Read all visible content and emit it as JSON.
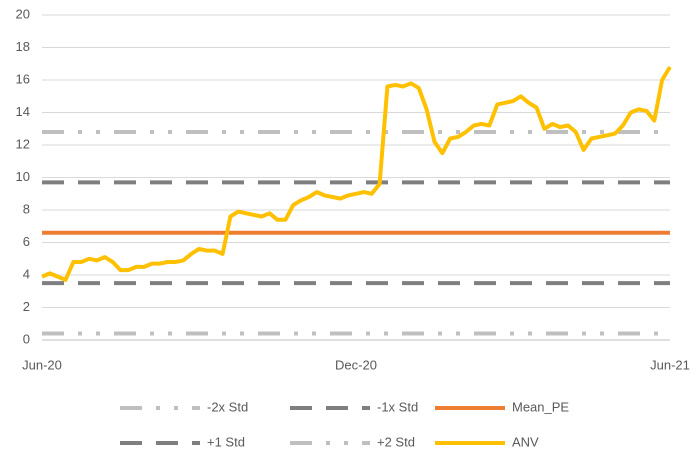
{
  "chart_data": {
    "type": "line",
    "categories": [
      "Jun-20",
      null,
      null,
      null,
      null,
      null,
      null,
      null,
      null,
      null,
      null,
      null,
      null,
      null,
      null,
      null,
      null,
      null,
      null,
      null,
      null,
      null,
      null,
      null,
      null,
      null,
      null,
      null,
      null,
      null,
      null,
      null,
      null,
      null,
      null,
      null,
      null,
      null,
      null,
      null,
      "Dec-20",
      null,
      null,
      null,
      null,
      null,
      null,
      null,
      null,
      null,
      null,
      null,
      null,
      null,
      null,
      null,
      null,
      null,
      null,
      null,
      null,
      null,
      null,
      null,
      null,
      null,
      null,
      null,
      null,
      null,
      null,
      null,
      null,
      null,
      null,
      null,
      null,
      null,
      null,
      null,
      "Jun-21"
    ],
    "ylim": [
      0,
      20
    ],
    "yticks": [
      0,
      2,
      4,
      6,
      8,
      10,
      12,
      14,
      16,
      18,
      20
    ],
    "grid": true,
    "series": [
      {
        "name": "-2x Std",
        "color": "#bfbfbf",
        "style": "long-dash-dot-dot",
        "values": [
          0.4,
          0.4,
          0.4,
          0.4,
          0.4,
          0.4,
          0.4,
          0.4,
          0.4,
          0.4,
          0.4,
          0.4,
          0.4,
          0.4,
          0.4,
          0.4,
          0.4,
          0.4,
          0.4,
          0.4,
          0.4,
          0.4,
          0.4,
          0.4,
          0.4,
          0.4,
          0.4,
          0.4,
          0.4,
          0.4,
          0.4,
          0.4,
          0.4,
          0.4,
          0.4,
          0.4,
          0.4,
          0.4,
          0.4,
          0.4,
          0.4,
          0.4,
          0.4,
          0.4,
          0.4,
          0.4,
          0.4,
          0.4,
          0.4,
          0.4,
          0.4,
          0.4,
          0.4,
          0.4,
          0.4,
          0.4,
          0.4,
          0.4,
          0.4,
          0.4,
          0.4,
          0.4,
          0.4,
          0.4,
          0.4,
          0.4,
          0.4,
          0.4,
          0.4,
          0.4,
          0.4,
          0.4,
          0.4,
          0.4,
          0.4,
          0.4,
          0.4,
          0.4,
          0.4,
          0.4,
          0.4
        ]
      },
      {
        "name": "-1x Std",
        "color": "#7f7f7f",
        "style": "long-dash",
        "values": [
          3.5,
          3.5,
          3.5,
          3.5,
          3.5,
          3.5,
          3.5,
          3.5,
          3.5,
          3.5,
          3.5,
          3.5,
          3.5,
          3.5,
          3.5,
          3.5,
          3.5,
          3.5,
          3.5,
          3.5,
          3.5,
          3.5,
          3.5,
          3.5,
          3.5,
          3.5,
          3.5,
          3.5,
          3.5,
          3.5,
          3.5,
          3.5,
          3.5,
          3.5,
          3.5,
          3.5,
          3.5,
          3.5,
          3.5,
          3.5,
          3.5,
          3.5,
          3.5,
          3.5,
          3.5,
          3.5,
          3.5,
          3.5,
          3.5,
          3.5,
          3.5,
          3.5,
          3.5,
          3.5,
          3.5,
          3.5,
          3.5,
          3.5,
          3.5,
          3.5,
          3.5,
          3.5,
          3.5,
          3.5,
          3.5,
          3.5,
          3.5,
          3.5,
          3.5,
          3.5,
          3.5,
          3.5,
          3.5,
          3.5,
          3.5,
          3.5,
          3.5,
          3.5,
          3.5,
          3.5,
          3.5
        ]
      },
      {
        "name": "Mean_PE",
        "color": "#ed7d31",
        "style": "solid",
        "values": [
          6.6,
          6.6,
          6.6,
          6.6,
          6.6,
          6.6,
          6.6,
          6.6,
          6.6,
          6.6,
          6.6,
          6.6,
          6.6,
          6.6,
          6.6,
          6.6,
          6.6,
          6.6,
          6.6,
          6.6,
          6.6,
          6.6,
          6.6,
          6.6,
          6.6,
          6.6,
          6.6,
          6.6,
          6.6,
          6.6,
          6.6,
          6.6,
          6.6,
          6.6,
          6.6,
          6.6,
          6.6,
          6.6,
          6.6,
          6.6,
          6.6,
          6.6,
          6.6,
          6.6,
          6.6,
          6.6,
          6.6,
          6.6,
          6.6,
          6.6,
          6.6,
          6.6,
          6.6,
          6.6,
          6.6,
          6.6,
          6.6,
          6.6,
          6.6,
          6.6,
          6.6,
          6.6,
          6.6,
          6.6,
          6.6,
          6.6,
          6.6,
          6.6,
          6.6,
          6.6,
          6.6,
          6.6,
          6.6,
          6.6,
          6.6,
          6.6,
          6.6,
          6.6,
          6.6,
          6.6,
          6.6
        ]
      },
      {
        "name": "+1 Std",
        "color": "#7f7f7f",
        "style": "long-dash",
        "values": [
          9.7,
          9.7,
          9.7,
          9.7,
          9.7,
          9.7,
          9.7,
          9.7,
          9.7,
          9.7,
          9.7,
          9.7,
          9.7,
          9.7,
          9.7,
          9.7,
          9.7,
          9.7,
          9.7,
          9.7,
          9.7,
          9.7,
          9.7,
          9.7,
          9.7,
          9.7,
          9.7,
          9.7,
          9.7,
          9.7,
          9.7,
          9.7,
          9.7,
          9.7,
          9.7,
          9.7,
          9.7,
          9.7,
          9.7,
          9.7,
          9.7,
          9.7,
          9.7,
          9.7,
          9.7,
          9.7,
          9.7,
          9.7,
          9.7,
          9.7,
          9.7,
          9.7,
          9.7,
          9.7,
          9.7,
          9.7,
          9.7,
          9.7,
          9.7,
          9.7,
          9.7,
          9.7,
          9.7,
          9.7,
          9.7,
          9.7,
          9.7,
          9.7,
          9.7,
          9.7,
          9.7,
          9.7,
          9.7,
          9.7,
          9.7,
          9.7,
          9.7,
          9.7,
          9.7,
          9.7,
          9.7
        ]
      },
      {
        "name": "+2 Std",
        "color": "#bfbfbf",
        "style": "long-dash-dot-dot",
        "values": [
          12.8,
          12.8,
          12.8,
          12.8,
          12.8,
          12.8,
          12.8,
          12.8,
          12.8,
          12.8,
          12.8,
          12.8,
          12.8,
          12.8,
          12.8,
          12.8,
          12.8,
          12.8,
          12.8,
          12.8,
          12.8,
          12.8,
          12.8,
          12.8,
          12.8,
          12.8,
          12.8,
          12.8,
          12.8,
          12.8,
          12.8,
          12.8,
          12.8,
          12.8,
          12.8,
          12.8,
          12.8,
          12.8,
          12.8,
          12.8,
          12.8,
          12.8,
          12.8,
          12.8,
          12.8,
          12.8,
          12.8,
          12.8,
          12.8,
          12.8,
          12.8,
          12.8,
          12.8,
          12.8,
          12.8,
          12.8,
          12.8,
          12.8,
          12.8,
          12.8,
          12.8,
          12.8,
          12.8,
          12.8,
          12.8,
          12.8,
          12.8,
          12.8,
          12.8,
          12.8,
          12.8,
          12.8,
          12.8,
          12.8,
          12.8,
          12.8,
          12.8,
          12.8,
          12.8,
          12.8,
          12.8
        ]
      },
      {
        "name": "ANV",
        "color": "#ffc000",
        "style": "solid",
        "values": [
          3.9,
          4.1,
          3.9,
          3.7,
          4.8,
          4.8,
          5.0,
          4.9,
          5.1,
          4.8,
          4.3,
          4.3,
          4.5,
          4.5,
          4.7,
          4.7,
          4.8,
          4.8,
          4.9,
          5.3,
          5.6,
          5.5,
          5.5,
          5.3,
          7.6,
          7.9,
          7.8,
          7.7,
          7.6,
          7.8,
          7.4,
          7.4,
          8.3,
          8.6,
          8.8,
          9.1,
          8.9,
          8.8,
          8.7,
          8.9,
          9.0,
          9.1,
          9.0,
          9.6,
          15.6,
          15.7,
          15.6,
          15.8,
          15.5,
          14.2,
          12.2,
          11.5,
          12.4,
          12.5,
          12.8,
          13.2,
          13.3,
          13.2,
          14.5,
          14.6,
          14.7,
          15.0,
          14.6,
          14.3,
          13.0,
          13.3,
          13.1,
          13.2,
          12.8,
          11.7,
          12.4,
          12.5,
          12.6,
          12.7,
          13.2,
          14.0,
          14.2,
          14.1,
          13.5,
          16.0,
          16.8
        ]
      }
    ]
  }
}
